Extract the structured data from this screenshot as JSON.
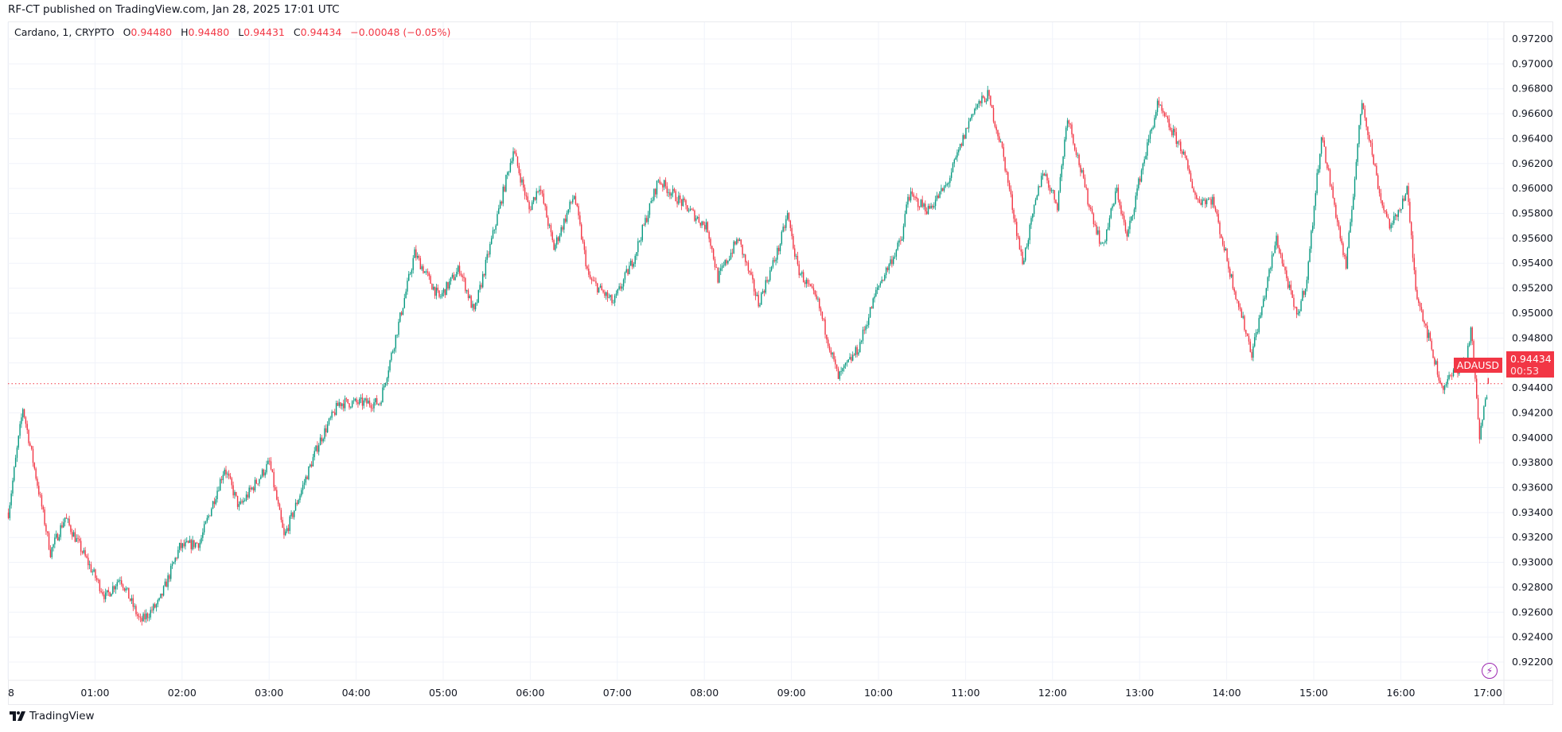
{
  "publisher_line": "RF-CT published on TradingView.com, Jan 28, 2025 17:01 UTC",
  "legend": {
    "symbol": "Cardano, 1, CRYPTO",
    "o_label": "O",
    "o": "0.94480",
    "h_label": "H",
    "h": "0.94480",
    "l_label": "L",
    "l": "0.94431",
    "c_label": "C",
    "c": "0.94434",
    "change": "−0.00048 (−0.05%)"
  },
  "last_price": {
    "symbol": "ADAUSD",
    "price": "0.94434",
    "countdown": "00:53",
    "color": "#f23645"
  },
  "footer": {
    "brand": "TradingView"
  },
  "icons": {
    "bottom_right": "lightning-bolt-icon",
    "footer_logo": "tradingview-logo-icon"
  },
  "colors": {
    "up": "#089981",
    "down": "#f23645",
    "grid": "#f0f3fa"
  },
  "chart_data": {
    "type": "candlestick",
    "interval": "1 minute",
    "symbol": "ADAUSD",
    "grid": true,
    "ylim": [
      0.921,
      0.973
    ],
    "y_ticks": [
      "0.97200",
      "0.97000",
      "0.96800",
      "0.96600",
      "0.96400",
      "0.96200",
      "0.96000",
      "0.95800",
      "0.95600",
      "0.95400",
      "0.95200",
      "0.95000",
      "0.94800",
      "0.94600",
      "0.94400",
      "0.94200",
      "0.94000",
      "0.93800",
      "0.93600",
      "0.93400",
      "0.93200",
      "0.93000",
      "0.92800",
      "0.92600",
      "0.92400",
      "0.92200"
    ],
    "x_ticks": [
      "8",
      "01:00",
      "02:00",
      "03:00",
      "04:00",
      "05:00",
      "06:00",
      "07:00",
      "08:00",
      "09:00",
      "10:00",
      "11:00",
      "12:00",
      "13:00",
      "14:00",
      "15:00",
      "16:00",
      "17:00"
    ],
    "price_path": [
      [
        "00:00",
        0.934
      ],
      [
        "00:10",
        0.9424
      ],
      [
        "00:29",
        0.9308
      ],
      [
        "00:39",
        0.9336
      ],
      [
        "01:07",
        0.9272
      ],
      [
        "01:17",
        0.9288
      ],
      [
        "01:31",
        0.9252
      ],
      [
        "01:44",
        0.9268
      ],
      [
        "01:58",
        0.9312
      ],
      [
        "02:12",
        0.9316
      ],
      [
        "02:29",
        0.9376
      ],
      [
        "02:39",
        0.9344
      ],
      [
        "03:00",
        0.938
      ],
      [
        "03:10",
        0.932
      ],
      [
        "03:34",
        0.9396
      ],
      [
        "03:48",
        0.9428
      ],
      [
        "04:16",
        0.9428
      ],
      [
        "04:26",
        0.9476
      ],
      [
        "04:40",
        0.9548
      ],
      [
        "04:57",
        0.9512
      ],
      [
        "05:11",
        0.9536
      ],
      [
        "05:21",
        0.95
      ],
      [
        "05:35",
        0.9568
      ],
      [
        "05:48",
        0.9631
      ],
      [
        "05:59",
        0.9583
      ],
      [
        "06:06",
        0.9603
      ],
      [
        "06:16",
        0.9552
      ],
      [
        "06:30",
        0.9595
      ],
      [
        "06:40",
        0.9528
      ],
      [
        "06:57",
        0.9508
      ],
      [
        "07:11",
        0.9544
      ],
      [
        "07:28",
        0.9607
      ],
      [
        "07:49",
        0.9583
      ],
      [
        "08:02",
        0.9568
      ],
      [
        "08:09",
        0.9528
      ],
      [
        "08:23",
        0.956
      ],
      [
        "08:37",
        0.9508
      ],
      [
        "08:51",
        0.9552
      ],
      [
        "08:57",
        0.9579
      ],
      [
        "09:04",
        0.9536
      ],
      [
        "09:18",
        0.9508
      ],
      [
        "09:32",
        0.9448
      ],
      [
        "09:46",
        0.9472
      ],
      [
        "09:59",
        0.952
      ],
      [
        "10:16",
        0.956
      ],
      [
        "10:20",
        0.9595
      ],
      [
        "10:34",
        0.9583
      ],
      [
        "10:47",
        0.9603
      ],
      [
        "11:05",
        0.9663
      ],
      [
        "11:15",
        0.9675
      ],
      [
        "11:25",
        0.9631
      ],
      [
        "11:39",
        0.954
      ],
      [
        "11:53",
        0.9615
      ],
      [
        "12:03",
        0.9587
      ],
      [
        "12:10",
        0.9659
      ],
      [
        "12:24",
        0.9591
      ],
      [
        "12:34",
        0.9552
      ],
      [
        "12:44",
        0.9599
      ],
      [
        "12:51",
        0.956
      ],
      [
        "13:01",
        0.9615
      ],
      [
        "13:12",
        0.9667
      ],
      [
        "13:29",
        0.9631
      ],
      [
        "13:39",
        0.9591
      ],
      [
        "13:50",
        0.9591
      ],
      [
        "14:03",
        0.9528
      ],
      [
        "14:17",
        0.9468
      ],
      [
        "14:24",
        0.9504
      ],
      [
        "14:34",
        0.956
      ],
      [
        "14:48",
        0.9496
      ],
      [
        "14:55",
        0.9528
      ],
      [
        "15:05",
        0.9643
      ],
      [
        "15:22",
        0.9536
      ],
      [
        "15:33",
        0.9671
      ],
      [
        "15:46",
        0.9591
      ],
      [
        "15:53",
        0.9568
      ],
      [
        "16:04",
        0.9599
      ],
      [
        "16:10",
        0.952
      ],
      [
        "16:28",
        0.944
      ],
      [
        "16:45",
        0.9464
      ],
      [
        "16:48",
        0.9488
      ],
      [
        "16:54",
        0.94
      ],
      [
        "17:00",
        0.94434
      ]
    ],
    "last_candle": {
      "time": "17:00",
      "open": 0.9448,
      "high": 0.9448,
      "low": 0.94431,
      "close": 0.94434
    }
  }
}
